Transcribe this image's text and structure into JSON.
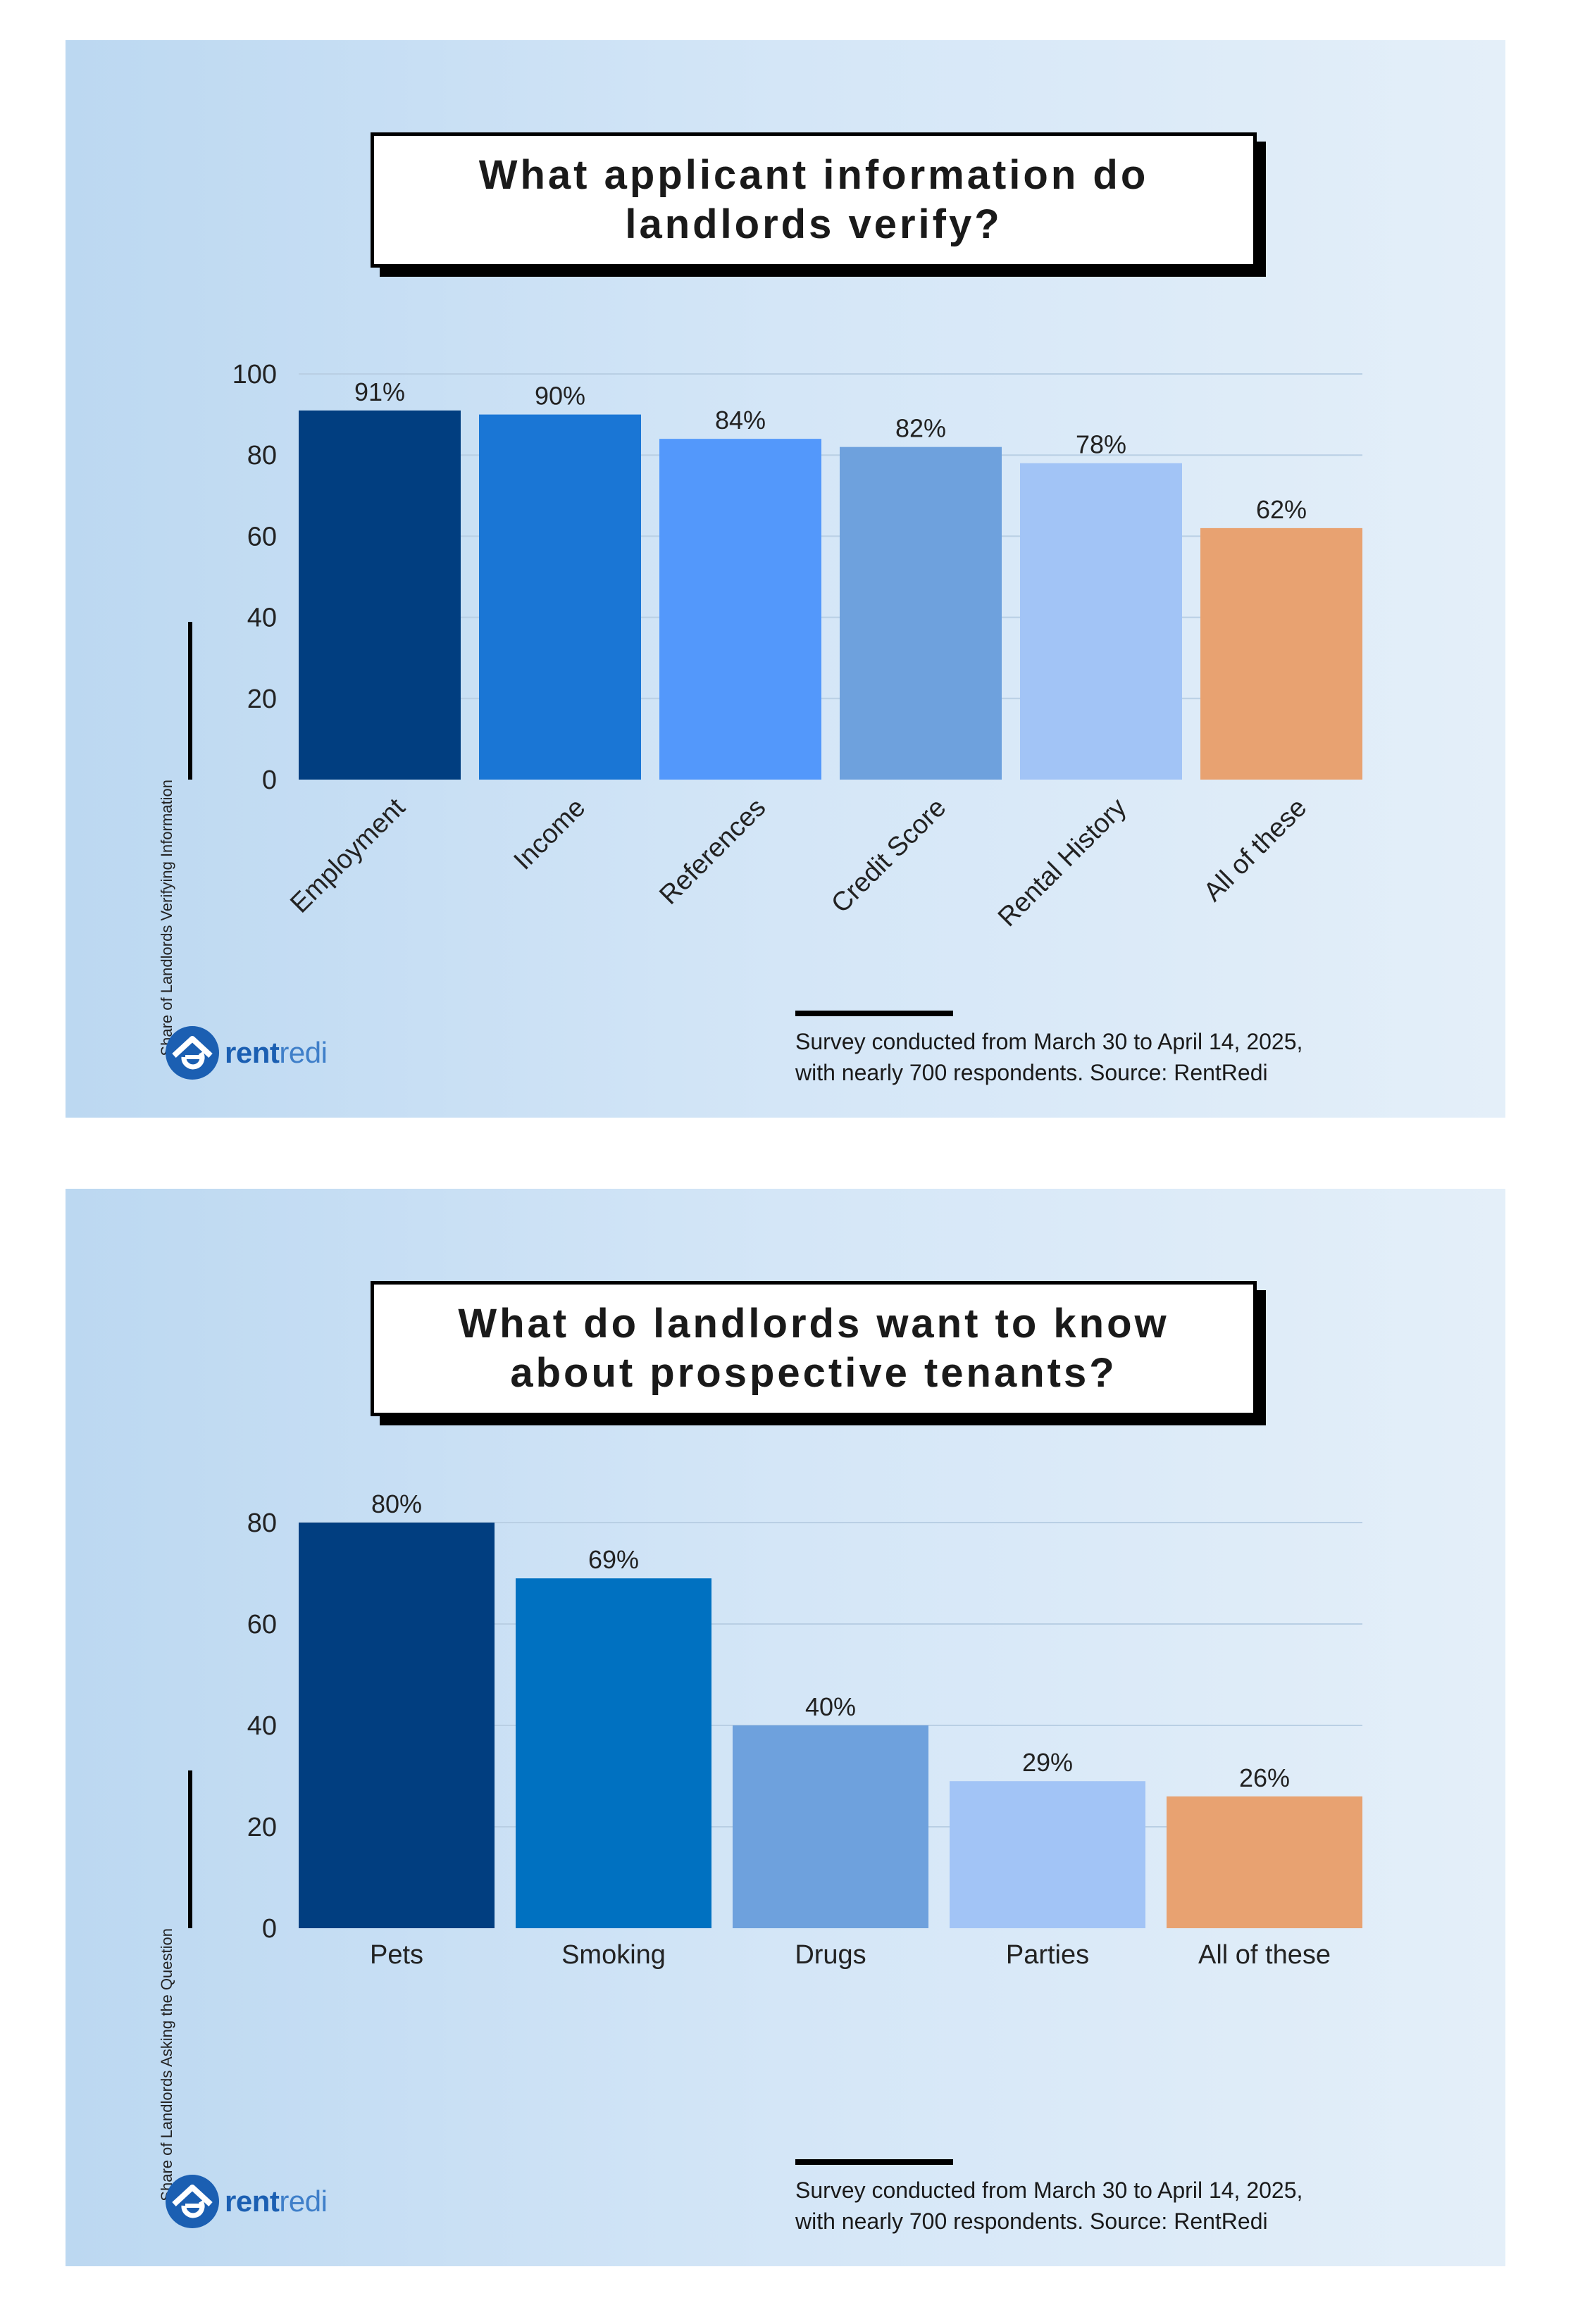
{
  "colors": {
    "navy": "#013e80",
    "blue": "#1a76d5",
    "bright_blue": "#5398fb",
    "steel_blue": "#6ea1dd",
    "light_blue": "#a2c4f6",
    "orange": "#e8a271",
    "smoking_blue": "#0071c1"
  },
  "brand": {
    "rent": "rent",
    "redi": "redi",
    "icon": "rentredi-house-logo-icon"
  },
  "footer": {
    "line1": "Survey conducted from March 30 to April 14, 2025,",
    "line2": "with nearly 700 respondents. Source: RentRedi"
  },
  "chart_data": [
    {
      "type": "bar",
      "title": "What applicant information do landlords verify?",
      "ylabel": "Share of Landlords Verifying Information",
      "xlabel": "",
      "ylim": [
        0,
        100
      ],
      "yticks": [
        0,
        20,
        40,
        60,
        80,
        100
      ],
      "grid": true,
      "categories": [
        "Employment",
        "Income",
        "References",
        "Credit Score",
        "Rental History",
        "All of these"
      ],
      "values": [
        91,
        90,
        84,
        82,
        78,
        62
      ],
      "data_labels": [
        "91%",
        "90%",
        "84%",
        "82%",
        "78%",
        "62%"
      ],
      "bar_colors": [
        "#013e80",
        "#1a76d5",
        "#5398fb",
        "#6ea1dd",
        "#a2c4f6",
        "#e8a271"
      ],
      "x_label_rotation": -45
    },
    {
      "type": "bar",
      "title": "What do landlords want to know about prospective tenants?",
      "ylabel": "Share of Landlords Asking the Question",
      "xlabel": "",
      "ylim": [
        0,
        80
      ],
      "yticks": [
        0,
        20,
        40,
        60,
        80
      ],
      "grid": true,
      "categories": [
        "Pets",
        "Smoking",
        "Drugs",
        "Parties",
        "All of these"
      ],
      "values": [
        80,
        69,
        40,
        29,
        26
      ],
      "data_labels": [
        "80%",
        "69%",
        "40%",
        "29%",
        "26%"
      ],
      "bar_colors": [
        "#013e80",
        "#0071c1",
        "#6ea1dd",
        "#a2c4f6",
        "#e8a271"
      ],
      "x_label_rotation": 0
    }
  ]
}
